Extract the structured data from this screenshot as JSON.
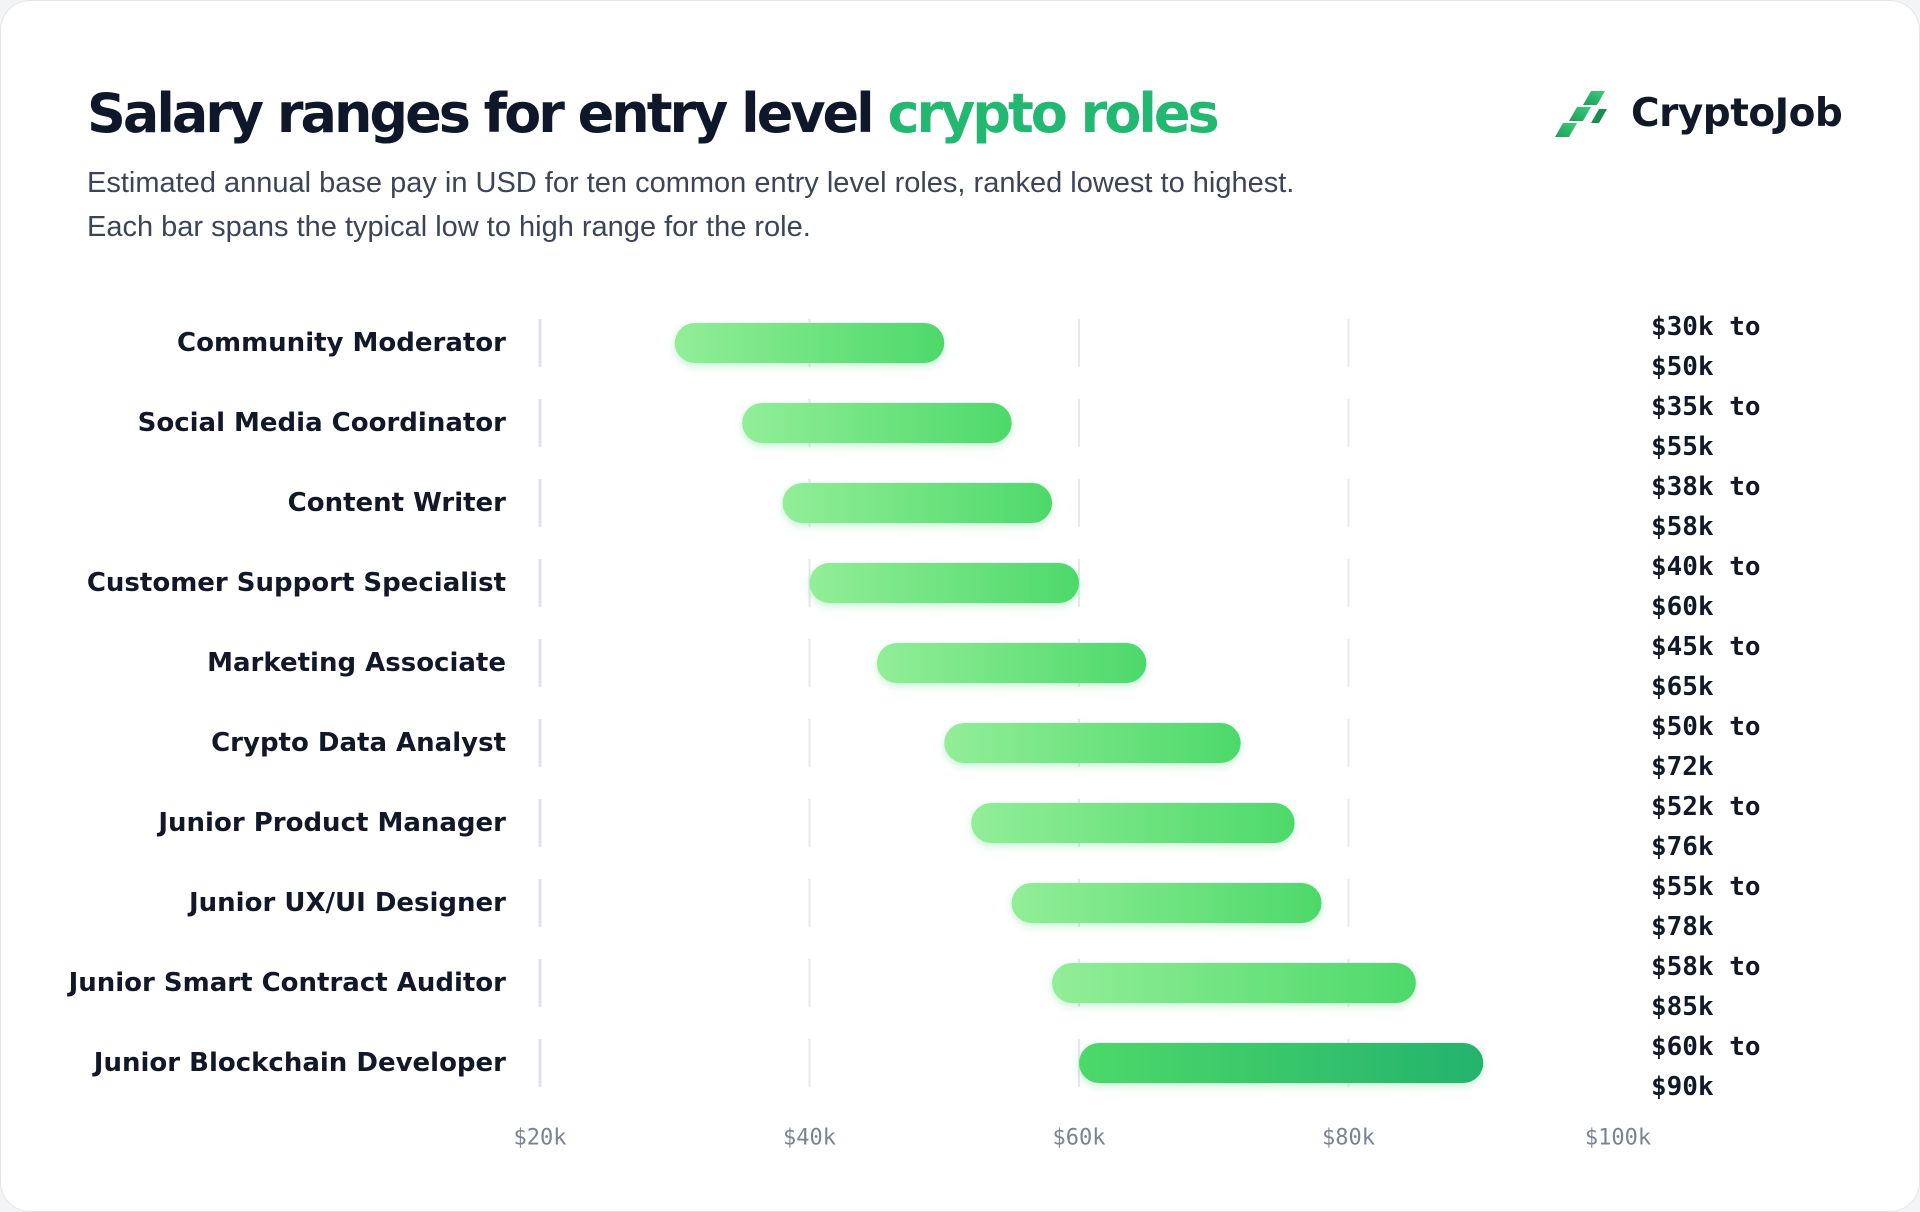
{
  "title": {
    "main": "Salary ranges for entry level",
    "accent": "crypto roles"
  },
  "subtitle": [
    "Estimated annual base pay in USD for ten common entry level roles, ranked lowest to highest.",
    "Each bar spans the typical low to high range for the role."
  ],
  "brand": {
    "name": "CryptoJob",
    "icon": "cryptojob-logo-icon"
  },
  "colors": {
    "accent": "#22b871",
    "bar_start": "#92ee97",
    "bar_end": "#4dd96a",
    "bar_end_top": "#24b36d",
    "text": "#111827",
    "grid": "#e6e8eb",
    "axis_line": "#dfe2e6",
    "tick_text": "#7a8392"
  },
  "chart_data": {
    "type": "bar",
    "orientation": "horizontal-range",
    "categories": [
      "Community Moderator",
      "Social Media Coordinator",
      "Content Writer",
      "Customer Support Specialist",
      "Marketing Associate",
      "Crypto Data Analyst",
      "Junior Product Manager",
      "Junior UX/UI Designer",
      "Junior Smart Contract Auditor",
      "Junior Blockchain Developer"
    ],
    "series": [
      {
        "low": 30,
        "high": 50,
        "label": "$30k to $50k"
      },
      {
        "low": 35,
        "high": 55,
        "label": "$35k to $55k"
      },
      {
        "low": 38,
        "high": 58,
        "label": "$38k to $58k"
      },
      {
        "low": 40,
        "high": 60,
        "label": "$40k to $60k"
      },
      {
        "low": 45,
        "high": 65,
        "label": "$45k to $65k"
      },
      {
        "low": 50,
        "high": 72,
        "label": "$50k to $72k"
      },
      {
        "low": 52,
        "high": 76,
        "label": "$52k to $76k"
      },
      {
        "low": 55,
        "high": 78,
        "label": "$55k to $78k"
      },
      {
        "low": 58,
        "high": 85,
        "label": "$58k to $85k"
      },
      {
        "low": 60,
        "high": 90,
        "label": "$60k to $90k"
      }
    ],
    "units": "thousand USD",
    "xlim": [
      20,
      100
    ],
    "xticks": [
      20,
      40,
      60,
      80,
      100
    ],
    "xtick_labels": [
      "$20k",
      "$40k",
      "$60k",
      "$80k",
      "$100k"
    ],
    "grid": true,
    "legend": "none"
  }
}
